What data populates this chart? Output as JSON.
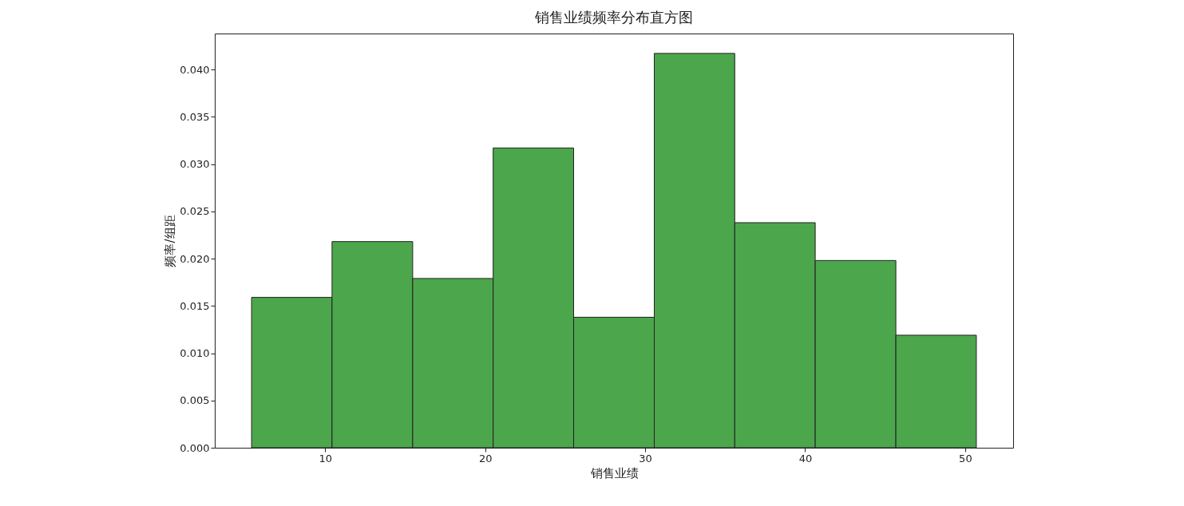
{
  "chart_data": {
    "type": "histogram",
    "title": "销售业绩频率分布直方图",
    "xlabel": "销售业绩",
    "ylabel": "频率/组距",
    "bins": [
      5.4,
      10.43,
      15.47,
      20.5,
      25.53,
      30.57,
      35.6,
      40.63,
      45.67,
      50.7
    ],
    "values": [
      0.0159,
      0.0218,
      0.0179,
      0.0317,
      0.0138,
      0.0417,
      0.0238,
      0.0198,
      0.0119
    ],
    "color": "#4ca64c",
    "xlim": [
      3.1,
      53.0
    ],
    "xticks": [
      10,
      20,
      30,
      40,
      50
    ],
    "ylim": [
      0,
      0.0438
    ],
    "yticks": [
      {
        "value": 0,
        "label": "0.000"
      },
      {
        "value": 0.005,
        "label": "0.005"
      },
      {
        "value": 0.01,
        "label": "0.010"
      },
      {
        "value": 0.015,
        "label": "0.015"
      },
      {
        "value": 0.02,
        "label": "0.020"
      },
      {
        "value": 0.025,
        "label": "0.025"
      },
      {
        "value": 0.03,
        "label": "0.030"
      },
      {
        "value": 0.035,
        "label": "0.035"
      },
      {
        "value": 0.04,
        "label": "0.040"
      }
    ],
    "grid": false
  }
}
